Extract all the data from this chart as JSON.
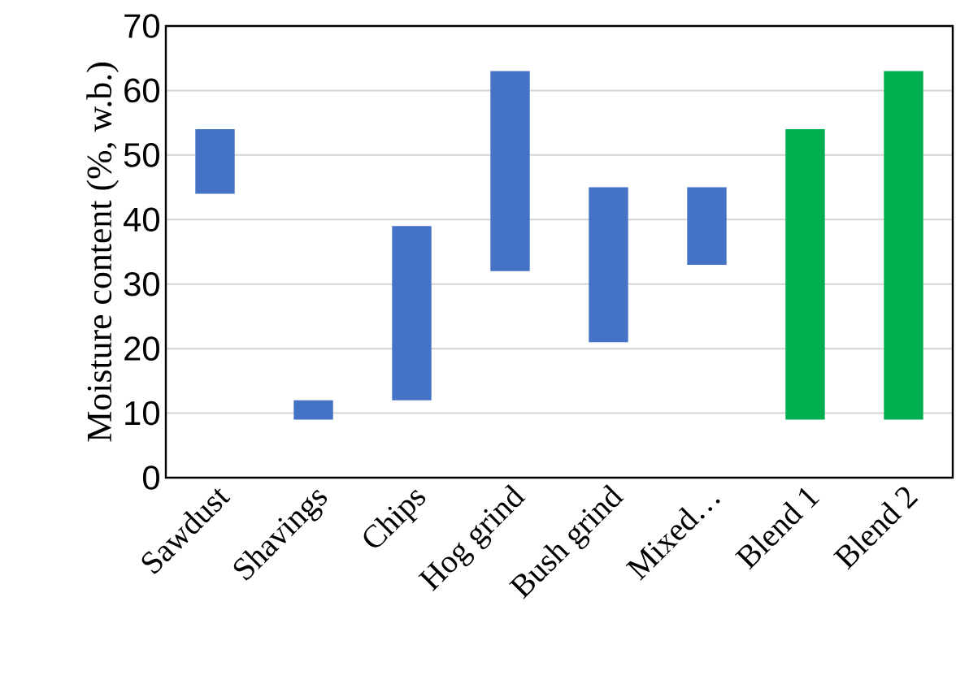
{
  "chart_data": {
    "type": "bar",
    "ylabel": "Moisture content (%, w.b.)",
    "categories": [
      "Sawdust",
      "Shavings",
      "Chips",
      "Hog grind",
      "Bush grind",
      "Mixed…",
      "Blend 1",
      "Blend 2"
    ],
    "base": [
      44,
      9,
      12,
      32,
      21,
      33,
      9,
      9
    ],
    "values": [
      10,
      3,
      27,
      31,
      24,
      12,
      45,
      54
    ],
    "colors": [
      "#4472c4",
      "#4472c4",
      "#4472c4",
      "#4472c4",
      "#4472c4",
      "#4472c4",
      "#00b050",
      "#00b050"
    ],
    "ylim": [
      0,
      70
    ],
    "yticks": [
      0,
      10,
      20,
      30,
      40,
      50,
      60,
      70
    ],
    "grid": "y"
  }
}
